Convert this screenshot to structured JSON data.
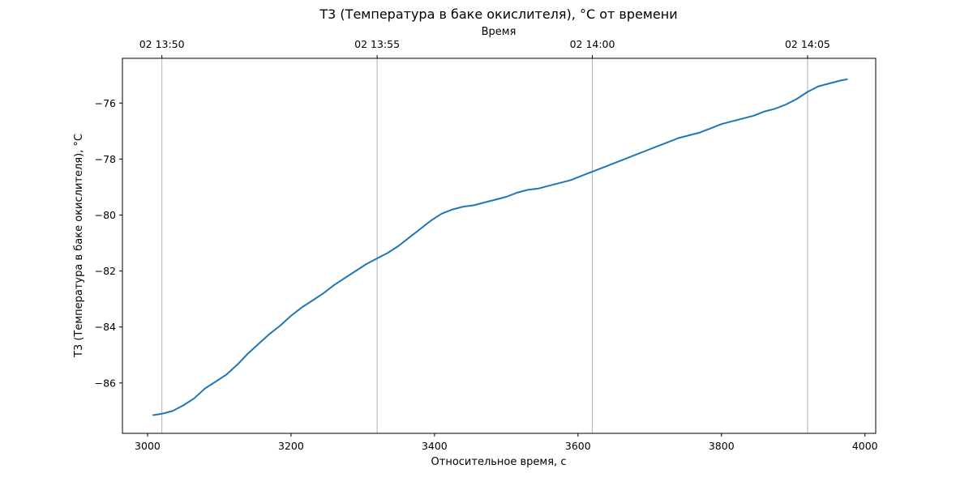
{
  "chart_data": {
    "type": "line",
    "title": "T3 (Температура в баке окислителя), °C от времени",
    "xlabel": "Относительное время, с",
    "ylabel": "T3 (Температура в баке окислителя), °C",
    "top_axis_label": "Время",
    "xlim": [
      2965,
      4015
    ],
    "ylim": [
      -87.8,
      -74.4
    ],
    "x_ticks": [
      3000,
      3200,
      3400,
      3600,
      3800,
      4000
    ],
    "y_ticks": [
      -86,
      -84,
      -82,
      -80,
      -78,
      -76
    ],
    "top_ticks": [
      {
        "x": 3020,
        "label": "02 13:50"
      },
      {
        "x": 3320,
        "label": "02 13:55"
      },
      {
        "x": 3620,
        "label": "02 14:00"
      },
      {
        "x": 3920,
        "label": "02 14:05"
      }
    ],
    "grid": "vertical at top-axis ticks",
    "line_color": "#1f77b4",
    "series": [
      {
        "points": [
          [
            3008,
            -87.15
          ],
          [
            3020,
            -87.1
          ],
          [
            3035,
            -87.0
          ],
          [
            3050,
            -86.8
          ],
          [
            3065,
            -86.55
          ],
          [
            3080,
            -86.2
          ],
          [
            3095,
            -85.95
          ],
          [
            3110,
            -85.7
          ],
          [
            3125,
            -85.35
          ],
          [
            3140,
            -84.95
          ],
          [
            3155,
            -84.6
          ],
          [
            3170,
            -84.25
          ],
          [
            3185,
            -83.95
          ],
          [
            3200,
            -83.6
          ],
          [
            3215,
            -83.3
          ],
          [
            3230,
            -83.05
          ],
          [
            3245,
            -82.8
          ],
          [
            3260,
            -82.5
          ],
          [
            3275,
            -82.25
          ],
          [
            3290,
            -82.0
          ],
          [
            3305,
            -81.75
          ],
          [
            3320,
            -81.55
          ],
          [
            3335,
            -81.35
          ],
          [
            3350,
            -81.1
          ],
          [
            3365,
            -80.8
          ],
          [
            3380,
            -80.5
          ],
          [
            3395,
            -80.2
          ],
          [
            3410,
            -79.95
          ],
          [
            3425,
            -79.8
          ],
          [
            3440,
            -79.7
          ],
          [
            3455,
            -79.65
          ],
          [
            3470,
            -79.55
          ],
          [
            3485,
            -79.45
          ],
          [
            3500,
            -79.35
          ],
          [
            3515,
            -79.2
          ],
          [
            3530,
            -79.1
          ],
          [
            3545,
            -79.05
          ],
          [
            3560,
            -78.95
          ],
          [
            3575,
            -78.85
          ],
          [
            3590,
            -78.75
          ],
          [
            3605,
            -78.6
          ],
          [
            3620,
            -78.45
          ],
          [
            3635,
            -78.3
          ],
          [
            3650,
            -78.15
          ],
          [
            3665,
            -78.0
          ],
          [
            3680,
            -77.85
          ],
          [
            3695,
            -77.7
          ],
          [
            3710,
            -77.55
          ],
          [
            3725,
            -77.4
          ],
          [
            3740,
            -77.25
          ],
          [
            3755,
            -77.15
          ],
          [
            3770,
            -77.05
          ],
          [
            3785,
            -76.9
          ],
          [
            3800,
            -76.75
          ],
          [
            3815,
            -76.65
          ],
          [
            3830,
            -76.55
          ],
          [
            3845,
            -76.45
          ],
          [
            3860,
            -76.3
          ],
          [
            3875,
            -76.2
          ],
          [
            3890,
            -76.05
          ],
          [
            3905,
            -75.85
          ],
          [
            3920,
            -75.6
          ],
          [
            3935,
            -75.4
          ],
          [
            3950,
            -75.3
          ],
          [
            3965,
            -75.2
          ],
          [
            3975,
            -75.15
          ]
        ]
      }
    ]
  }
}
